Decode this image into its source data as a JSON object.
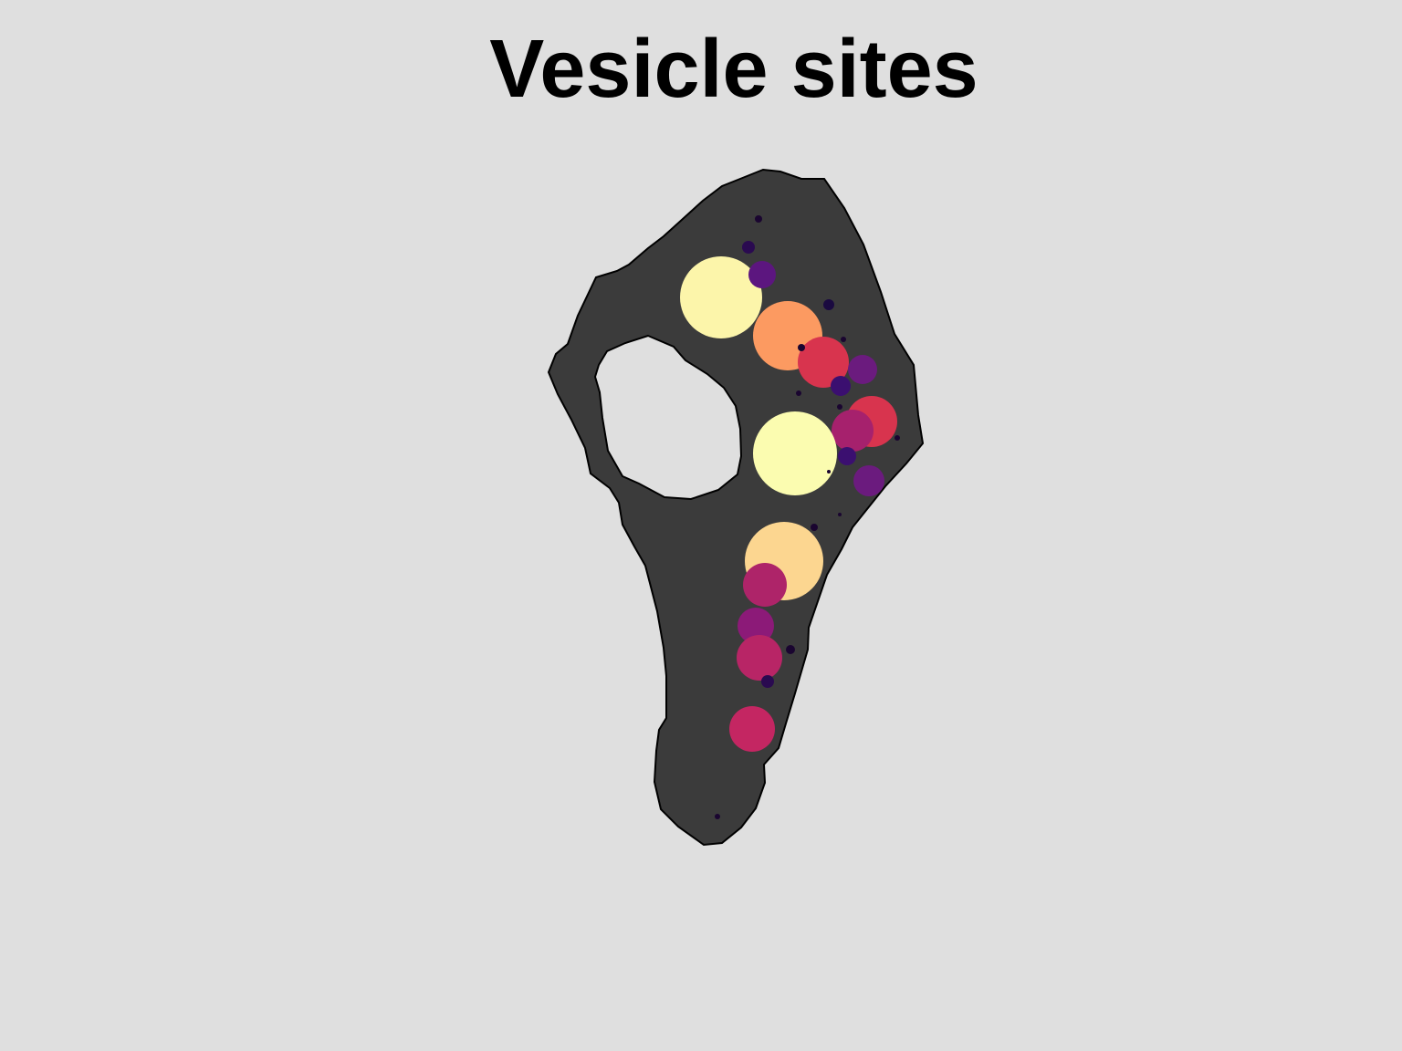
{
  "chart_data": {
    "type": "bubble",
    "title": "Vesicle sites",
    "x": [
      190,
      263,
      302,
      345,
      321,
      235,
      220,
      231,
      308,
      355,
      334,
      328,
      271,
      352,
      259,
      238,
      228,
      232,
      241,
      266,
      224,
      186,
      275,
      320,
      383,
      292,
      320,
      324,
      278,
      308
    ],
    "y": [
      604,
      562,
      533,
      525,
      507,
      629,
      659,
      690,
      596,
      468,
      458,
      430,
      433,
      403,
      315,
      289,
      244,
      209,
      183,
      218,
      131,
      35,
      499,
      484,
      450,
      352,
      366,
      558,
      549,
      413
    ],
    "sizes": [
      45,
      38,
      28,
      16,
      11,
      15,
      7,
      4,
      6,
      28,
      23,
      10,
      46,
      17,
      43,
      24,
      20,
      25,
      7,
      5,
      25,
      3,
      3,
      3,
      3,
      4,
      2,
      3,
      4,
      2
    ],
    "colors": [
      "#fcf5aa",
      "#fc9a61",
      "#d8344e",
      "#6b1b7e",
      "#3b0f70",
      "#5c167f",
      "#2a0a50",
      "#1a0530",
      "#1a0a40",
      "#d8344e",
      "#a6216d",
      "#3b0f70",
      "#fbfcb0",
      "#6b1b7e",
      "#fcd690",
      "#ae2469",
      "#8c1a78",
      "#b82566",
      "#2a0a50",
      "#1a0530",
      "#c42662",
      "#1a0530",
      "#1a0530",
      "#1a0530",
      "#1a0530",
      "#1a0530",
      "#1a0530",
      "#1a0530",
      "#1a0530",
      "#1a0530"
    ],
    "xlim": [
      0,
      412
    ],
    "ylim": [
      0,
      745
    ]
  }
}
